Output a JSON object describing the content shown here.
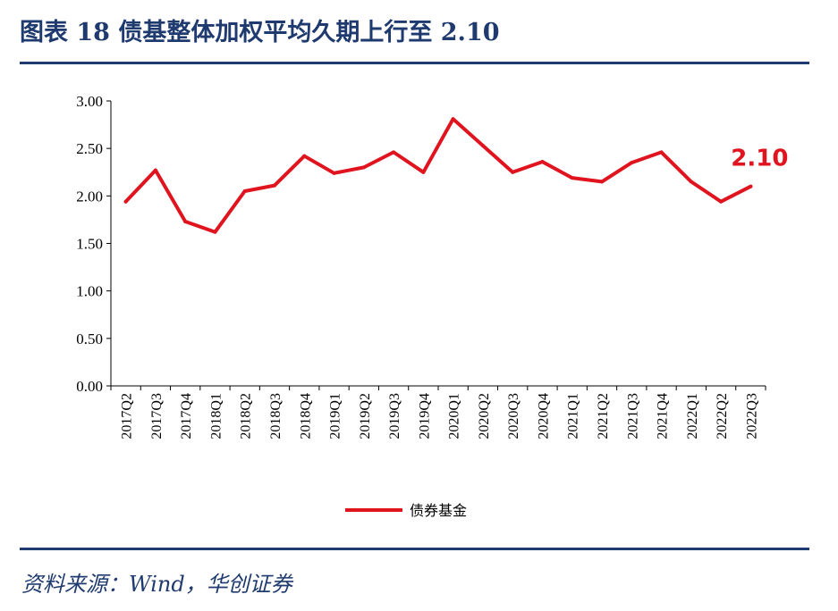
{
  "header": {
    "title": "图表 18  债基整体加权平均久期上行至 2.10"
  },
  "footer": {
    "source": "资料来源：Wind，华创证券"
  },
  "colors": {
    "series": "#e0141e",
    "accent": "#1f3a6e",
    "axis": "#000000"
  },
  "chart_data": {
    "type": "line",
    "title": "",
    "xlabel": "",
    "ylabel": "",
    "ylim": [
      0,
      3
    ],
    "ytick_labels": [
      "0.00",
      "0.50",
      "1.00",
      "1.50",
      "2.00",
      "2.50",
      "3.00"
    ],
    "grid": false,
    "legend_position": "bottom",
    "categories": [
      "2017Q2",
      "2017Q3",
      "2017Q4",
      "2018Q1",
      "2018Q2",
      "2018Q3",
      "2018Q4",
      "2019Q1",
      "2019Q2",
      "2019Q3",
      "2019Q4",
      "2020Q1",
      "2020Q2",
      "2020Q3",
      "2020Q4",
      "2021Q1",
      "2021Q2",
      "2021Q3",
      "2021Q4",
      "2022Q1",
      "2022Q2",
      "2022Q3"
    ],
    "series": [
      {
        "name": "债券基金",
        "color": "#e0141e",
        "values": [
          1.94,
          2.27,
          1.73,
          1.62,
          2.05,
          2.11,
          2.42,
          2.24,
          2.3,
          2.46,
          2.25,
          2.81,
          2.53,
          2.25,
          2.36,
          2.19,
          2.15,
          2.35,
          2.46,
          2.15,
          1.94,
          2.1
        ]
      }
    ],
    "annotations": [
      {
        "text": "2.10",
        "category": "2022Q3",
        "value": 2.1
      }
    ]
  }
}
